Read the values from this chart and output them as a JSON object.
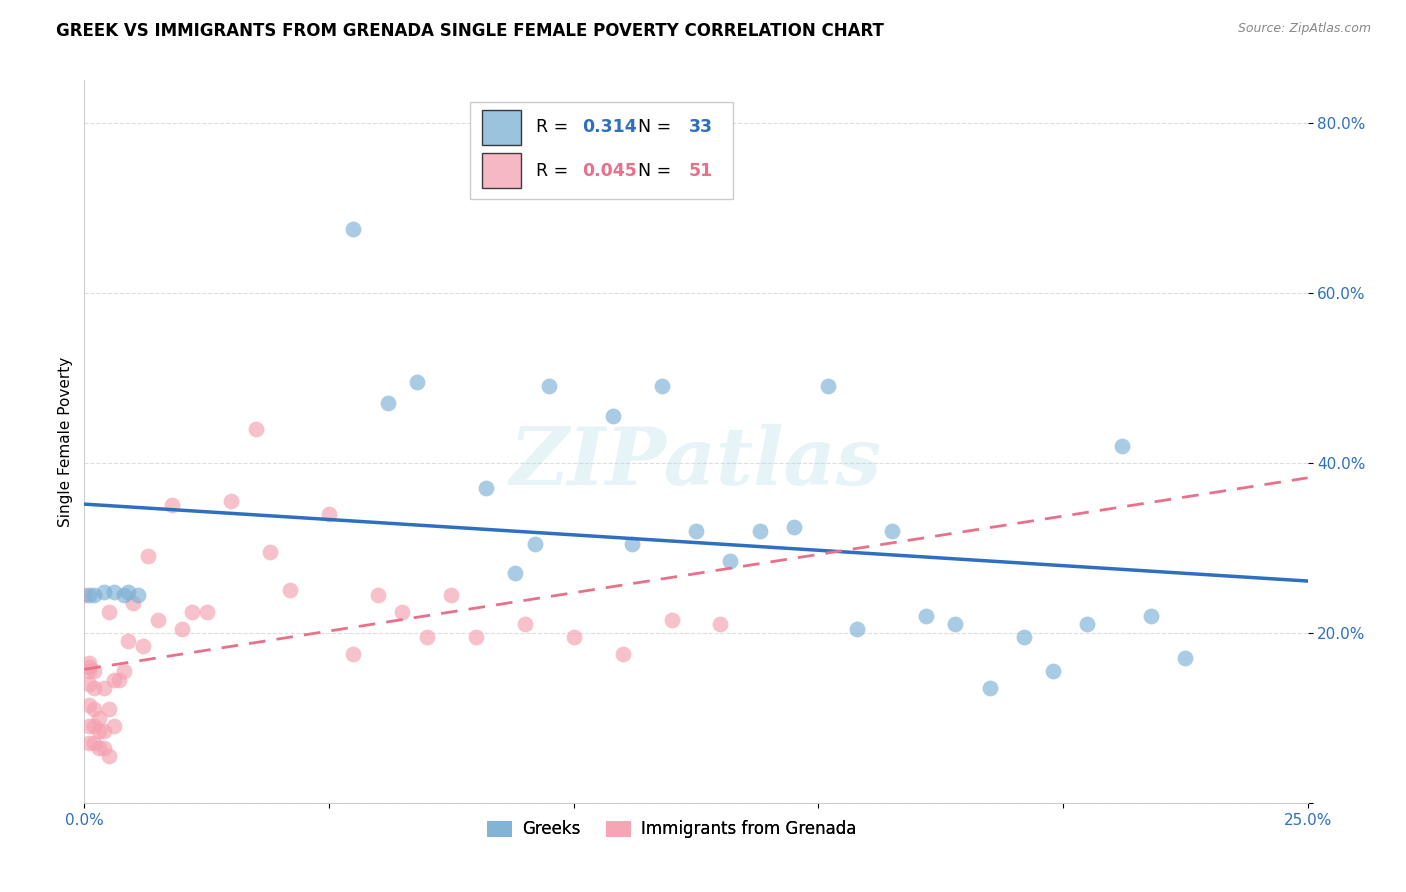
{
  "title": "GREEK VS IMMIGRANTS FROM GRENADA SINGLE FEMALE POVERTY CORRELATION CHART",
  "source": "Source: ZipAtlas.com",
  "ylabel": "Single Female Poverty",
  "x_min": 0.0,
  "x_max": 0.25,
  "y_min": 0.0,
  "y_max": 0.85,
  "x_ticks": [
    0.0,
    0.05,
    0.1,
    0.15,
    0.2,
    0.25
  ],
  "x_tick_labels": [
    "0.0%",
    "",
    "",
    "",
    "",
    "25.0%"
  ],
  "y_ticks": [
    0.0,
    0.2,
    0.4,
    0.6,
    0.8
  ],
  "y_tick_labels": [
    "",
    "20.0%",
    "40.0%",
    "60.0%",
    "80.0%"
  ],
  "blue_R": "0.314",
  "blue_N": "33",
  "pink_R": "0.045",
  "pink_N": "51",
  "blue_color": "#7BAFD4",
  "pink_color": "#F4A0B0",
  "blue_line_color": "#2E6FBF",
  "pink_line_color": "#E8708A",
  "blue_label": "Greeks",
  "pink_label": "Immigrants from Grenada",
  "watermark": "ZIPatlas",
  "blue_scatter_x": [
    0.001,
    0.002,
    0.004,
    0.006,
    0.008,
    0.009,
    0.011,
    0.055,
    0.062,
    0.068,
    0.082,
    0.088,
    0.092,
    0.095,
    0.108,
    0.112,
    0.118,
    0.125,
    0.132,
    0.138,
    0.145,
    0.152,
    0.158,
    0.165,
    0.172,
    0.178,
    0.185,
    0.192,
    0.198,
    0.205,
    0.212,
    0.218,
    0.225
  ],
  "blue_scatter_y": [
    0.245,
    0.245,
    0.248,
    0.248,
    0.245,
    0.248,
    0.245,
    0.675,
    0.47,
    0.495,
    0.37,
    0.27,
    0.305,
    0.49,
    0.455,
    0.305,
    0.49,
    0.32,
    0.285,
    0.32,
    0.325,
    0.49,
    0.205,
    0.32,
    0.22,
    0.21,
    0.135,
    0.195,
    0.155,
    0.21,
    0.42,
    0.22,
    0.17
  ],
  "pink_scatter_x": [
    0.0,
    0.001,
    0.001,
    0.001,
    0.001,
    0.001,
    0.001,
    0.001,
    0.002,
    0.002,
    0.002,
    0.002,
    0.002,
    0.003,
    0.003,
    0.003,
    0.004,
    0.004,
    0.004,
    0.005,
    0.005,
    0.005,
    0.006,
    0.006,
    0.007,
    0.008,
    0.009,
    0.01,
    0.012,
    0.013,
    0.015,
    0.018,
    0.02,
    0.022,
    0.025,
    0.03,
    0.035,
    0.038,
    0.042,
    0.05,
    0.055,
    0.06,
    0.065,
    0.07,
    0.075,
    0.08,
    0.09,
    0.1,
    0.11,
    0.12,
    0.13
  ],
  "pink_scatter_y": [
    0.245,
    0.07,
    0.09,
    0.115,
    0.14,
    0.155,
    0.16,
    0.165,
    0.07,
    0.09,
    0.11,
    0.135,
    0.155,
    0.065,
    0.085,
    0.1,
    0.065,
    0.085,
    0.135,
    0.055,
    0.11,
    0.225,
    0.09,
    0.145,
    0.145,
    0.155,
    0.19,
    0.235,
    0.185,
    0.29,
    0.215,
    0.35,
    0.205,
    0.225,
    0.225,
    0.355,
    0.44,
    0.295,
    0.25,
    0.34,
    0.175,
    0.245,
    0.225,
    0.195,
    0.245,
    0.195,
    0.21,
    0.195,
    0.175,
    0.215,
    0.21
  ],
  "grid_color": "#DDDDDD",
  "background_color": "#FFFFFF",
  "title_fontsize": 12,
  "axis_label_fontsize": 11,
  "tick_fontsize": 11
}
